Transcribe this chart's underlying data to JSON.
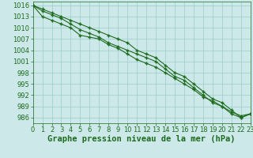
{
  "xlabel": "Graphe pression niveau de la mer (hPa)",
  "x": [
    0,
    1,
    2,
    3,
    4,
    5,
    6,
    7,
    8,
    9,
    10,
    11,
    12,
    13,
    14,
    15,
    16,
    17,
    18,
    19,
    20,
    21,
    22,
    23
  ],
  "line1": [
    1016,
    1015,
    1014,
    1013,
    1012,
    1011,
    1010,
    1009,
    1008,
    1007,
    1006,
    1004,
    1003,
    1002,
    1000,
    998,
    997,
    995,
    993,
    991,
    990,
    988,
    986,
    987
  ],
  "line2": [
    1016,
    1014.5,
    1013.5,
    1012.5,
    1011,
    1009.5,
    1008.5,
    1007.5,
    1006,
    1005,
    1004,
    1003,
    1002,
    1001,
    999,
    997,
    996,
    994,
    992,
    990,
    989,
    987,
    986,
    987
  ],
  "line3": [
    1016,
    1013,
    1012,
    1011,
    1010,
    1008,
    1007.5,
    1007,
    1005.5,
    1004.5,
    1003,
    1001.5,
    1000.5,
    999.5,
    998,
    996.5,
    995,
    993.5,
    991.5,
    990.5,
    989,
    987.5,
    986.5,
    987
  ],
  "line_color": "#1e6b1e",
  "marker_color": "#1e6b1e",
  "bg_color": "#cce8e8",
  "grid_color": "#99cccc",
  "ylim": [
    984.5,
    1017
  ],
  "yticks": [
    986,
    989,
    992,
    995,
    998,
    1001,
    1004,
    1007,
    1010,
    1013,
    1016
  ],
  "xlim": [
    0,
    23
  ],
  "xticks": [
    0,
    1,
    2,
    3,
    4,
    5,
    6,
    7,
    8,
    9,
    10,
    11,
    12,
    13,
    14,
    15,
    16,
    17,
    18,
    19,
    20,
    21,
    22,
    23
  ],
  "title_fontsize": 7.5,
  "tick_fontsize": 6,
  "marker": "+",
  "marker_size": 3,
  "line_width": 0.8
}
